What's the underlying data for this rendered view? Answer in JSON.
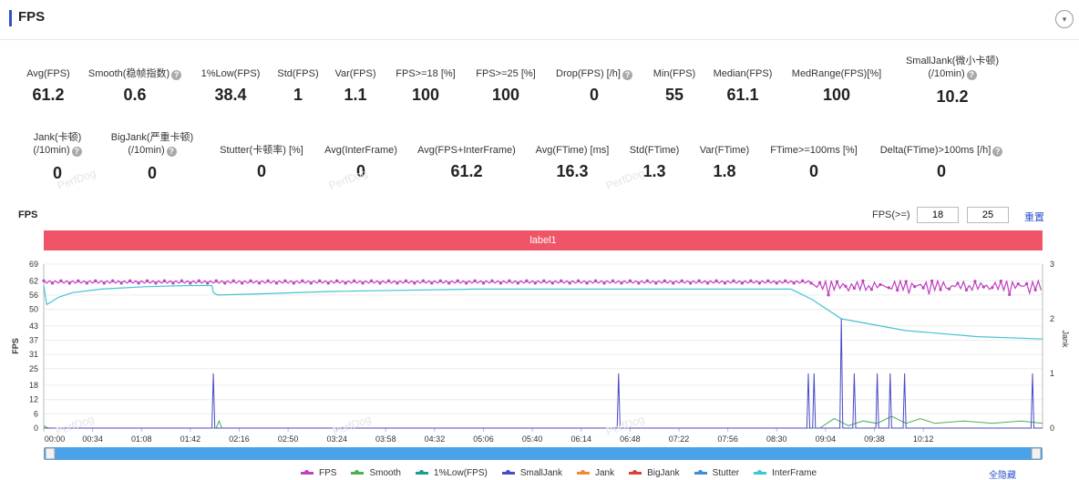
{
  "header": {
    "title": "FPS",
    "collapse_icon": "▾"
  },
  "metrics_row1": [
    {
      "label": "Avg(FPS)",
      "value": "61.2",
      "help": false
    },
    {
      "label": "Smooth(稳帧指数)",
      "value": "0.6",
      "help": true
    },
    {
      "label": "1%Low(FPS)",
      "value": "38.4",
      "help": false
    },
    {
      "label": "Std(FPS)",
      "value": "1",
      "help": false
    },
    {
      "label": "Var(FPS)",
      "value": "1.1",
      "help": false
    },
    {
      "label": "FPS>=18 [%]",
      "value": "100",
      "help": false
    },
    {
      "label": "FPS>=25 [%]",
      "value": "100",
      "help": false
    },
    {
      "label": "Drop(FPS) [/h]",
      "value": "0",
      "help": true
    },
    {
      "label": "Min(FPS)",
      "value": "55",
      "help": false
    },
    {
      "label": "Median(FPS)",
      "value": "61.1",
      "help": false
    },
    {
      "label": "MedRange(FPS)[%]",
      "value": "100",
      "help": false
    },
    {
      "label": "SmallJank(微小卡顿)",
      "label2": "(/10min)",
      "value": "10.2",
      "help": true
    }
  ],
  "metrics_row2": [
    {
      "label": "Jank(卡顿)",
      "label2": "(/10min)",
      "value": "0",
      "help": true
    },
    {
      "label": "BigJank(严重卡顿)",
      "label2": "(/10min)",
      "value": "0",
      "help": true
    },
    {
      "label": "Stutter(卡顿率) [%]",
      "value": "0",
      "help": false
    },
    {
      "label": "Avg(InterFrame)",
      "value": "0",
      "help": false
    },
    {
      "label": "Avg(FPS+InterFrame)",
      "value": "61.2",
      "help": false
    },
    {
      "label": "Avg(FTime) [ms]",
      "value": "16.3",
      "help": false
    },
    {
      "label": "Std(FTime)",
      "value": "1.3",
      "help": false
    },
    {
      "label": "Var(FTime)",
      "value": "1.8",
      "help": false
    },
    {
      "label": "FTime>=100ms [%]",
      "value": "0",
      "help": false
    },
    {
      "label": "Delta(FTime)>100ms [/h]",
      "value": "0",
      "help": true
    }
  ],
  "watermark": "PerfDog",
  "chart_section": {
    "title": "FPS",
    "threshold_label": "FPS(>=)",
    "threshold_1": "18",
    "threshold_2": "25",
    "reset_label": "重置",
    "band_label": "label1",
    "hide_all_label": "全隐藏"
  },
  "chart_data": {
    "type": "line",
    "y_label": "FPS",
    "y2_label": "Jank",
    "y_ticks": [
      "0",
      "6",
      "12",
      "18",
      "25",
      "31",
      "37",
      "43",
      "50",
      "56",
      "62",
      "69"
    ],
    "y_range": [
      0,
      69
    ],
    "y2_ticks": [
      "0",
      "1",
      "2",
      "3"
    ],
    "y2_range": [
      0,
      3
    ],
    "x_ticks": [
      "00:00",
      "00:34",
      "01:08",
      "01:42",
      "02:16",
      "02:50",
      "03:24",
      "03:58",
      "04:32",
      "05:06",
      "05:40",
      "06:14",
      "06:48",
      "07:22",
      "07:56",
      "08:30",
      "09:04",
      "09:38",
      "10:12"
    ],
    "x_range_seconds": [
      0,
      695
    ],
    "series": [
      {
        "name": "FPS",
        "color": "#c040c0",
        "axis": "left",
        "description": "oscillates around 61-62 throughout; between 08:30 and end oscillates 57-62"
      },
      {
        "name": "Smooth",
        "color": "#4caf50",
        "axis": "left",
        "points": [
          [
            0,
            1
          ],
          [
            3,
            0
          ],
          [
            120,
            0
          ],
          [
            122,
            3
          ],
          [
            124,
            0
          ],
          [
            540,
            0
          ],
          [
            545,
            2
          ],
          [
            550,
            4
          ],
          [
            560,
            1
          ],
          [
            570,
            3
          ],
          [
            580,
            2
          ],
          [
            590,
            5
          ],
          [
            600,
            2
          ],
          [
            610,
            4
          ],
          [
            620,
            2
          ],
          [
            640,
            3
          ],
          [
            660,
            2
          ],
          [
            680,
            3
          ],
          [
            695,
            2
          ]
        ]
      },
      {
        "name": "1%Low(FPS)",
        "color": "#1a9e8f",
        "axis": "left",
        "points": []
      },
      {
        "name": "SmallJank",
        "color": "#4a4ac8",
        "axis": "right",
        "points": [
          [
            0,
            0
          ],
          [
            117,
            0
          ],
          [
            118,
            1
          ],
          [
            119,
            0
          ],
          [
            399,
            0
          ],
          [
            400,
            1
          ],
          [
            401,
            0
          ],
          [
            531,
            0
          ],
          [
            532,
            1
          ],
          [
            533,
            0
          ],
          [
            535,
            0
          ],
          [
            536,
            1
          ],
          [
            537,
            0
          ],
          [
            554,
            0
          ],
          [
            555,
            2
          ],
          [
            556,
            0
          ],
          [
            563,
            0
          ],
          [
            564,
            1
          ],
          [
            565,
            0
          ],
          [
            579,
            0
          ],
          [
            580,
            1
          ],
          [
            581,
            0
          ],
          [
            588,
            0
          ],
          [
            589,
            1
          ],
          [
            590,
            0
          ],
          [
            598,
            0
          ],
          [
            599,
            1
          ],
          [
            600,
            0
          ],
          [
            687,
            0
          ],
          [
            688,
            1
          ],
          [
            689,
            0
          ],
          [
            695,
            0
          ]
        ]
      },
      {
        "name": "Jank",
        "color": "#f08c30",
        "axis": "right",
        "points": []
      },
      {
        "name": "BigJank",
        "color": "#d9413a",
        "axis": "right",
        "points": []
      },
      {
        "name": "Stutter",
        "color": "#3a8fd8",
        "axis": "right",
        "points": []
      },
      {
        "name": "InterFrame",
        "color": "#44c4d0",
        "axis": "left",
        "points": [
          [
            0,
            60
          ],
          [
            2,
            52
          ],
          [
            5,
            53
          ],
          [
            10,
            55
          ],
          [
            20,
            57
          ],
          [
            40,
            58.5
          ],
          [
            70,
            59.5
          ],
          [
            100,
            60
          ],
          [
            117,
            60
          ],
          [
            118,
            57
          ],
          [
            121,
            56
          ],
          [
            150,
            56.5
          ],
          [
            200,
            57.5
          ],
          [
            300,
            58.5
          ],
          [
            400,
            58.5
          ],
          [
            520,
            58.5
          ],
          [
            535,
            54
          ],
          [
            555,
            46
          ],
          [
            600,
            41
          ],
          [
            650,
            38.5
          ],
          [
            695,
            37.5
          ]
        ]
      }
    ]
  }
}
